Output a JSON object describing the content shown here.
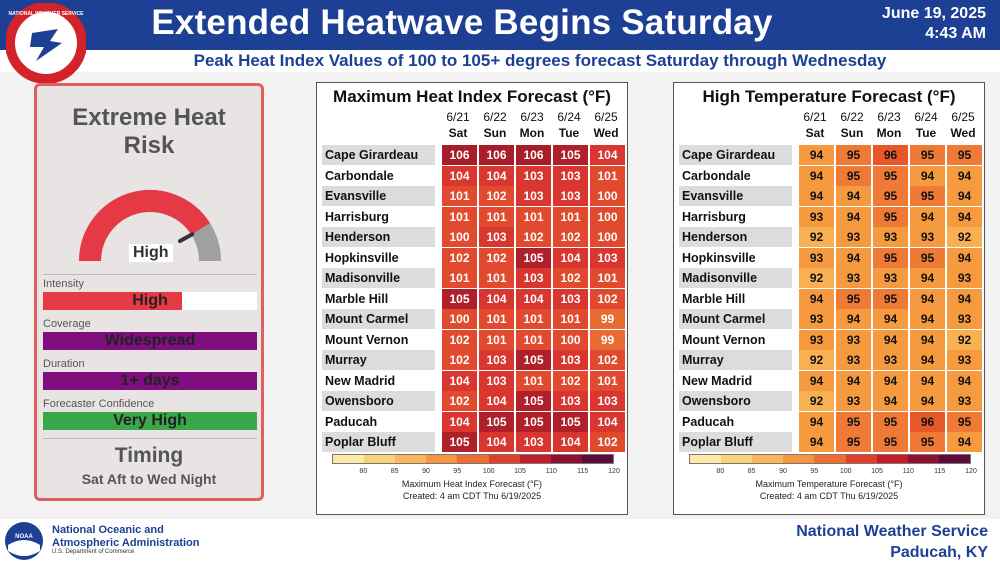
{
  "header": {
    "title": "Extended Heatwave Begins Saturday",
    "date": "June 19, 2025",
    "time": "4:43 AM",
    "subtitle": "Peak Heat Index Values of 100 to 105+ degrees forecast Saturday through Wednesday",
    "logo_text": "NATIONAL WEATHER SERVICE"
  },
  "risk": {
    "title_line1": "Extreme Heat",
    "title_line2": "Risk",
    "gauge_label": "High",
    "gauge_level": 0.82,
    "intensity_label": "Intensity",
    "intensity_value": "High",
    "intensity_fill": 0.65,
    "coverage_label": "Coverage",
    "coverage_value": "Widespread",
    "duration_label": "Duration",
    "duration_value": "1+ days",
    "confidence_label": "Forecaster Confidence",
    "confidence_value": "Very High",
    "timing_title": "Timing",
    "timing_text": "Sat Aft to Wed Night",
    "colors": {
      "high": "#e53a46",
      "purple": "#7f0f7f",
      "green": "#3aa74a"
    }
  },
  "days": [
    {
      "date": "6/21",
      "dow": "Sat"
    },
    {
      "date": "6/22",
      "dow": "Sun"
    },
    {
      "date": "6/23",
      "dow": "Mon"
    },
    {
      "date": "6/24",
      "dow": "Tue"
    },
    {
      "date": "6/25",
      "dow": "Wed"
    }
  ],
  "cities": [
    "Cape Girardeau",
    "Carbondale",
    "Evansville",
    "Harrisburg",
    "Henderson",
    "Hopkinsville",
    "Madisonville",
    "Marble Hill",
    "Mount Carmel",
    "Mount Vernon",
    "Murray",
    "New Madrid",
    "Owensboro",
    "Paducah",
    "Poplar Bluff"
  ],
  "heat_index": {
    "title": "Maximum Heat Index Forecast (°F)",
    "legend_caption": "Maximum Heat Index Forecast (°F)",
    "created": "Created: 4 am CDT Thu 6/19/2025",
    "values": [
      [
        106,
        106,
        106,
        105,
        104
      ],
      [
        104,
        104,
        103,
        103,
        101
      ],
      [
        101,
        102,
        103,
        103,
        100
      ],
      [
        101,
        101,
        101,
        101,
        100
      ],
      [
        100,
        103,
        102,
        102,
        100
      ],
      [
        102,
        102,
        105,
        104,
        103
      ],
      [
        101,
        101,
        103,
        102,
        101
      ],
      [
        105,
        104,
        104,
        103,
        102
      ],
      [
        100,
        101,
        101,
        101,
        99
      ],
      [
        102,
        101,
        101,
        100,
        99
      ],
      [
        102,
        103,
        105,
        103,
        102
      ],
      [
        104,
        103,
        101,
        102,
        101
      ],
      [
        102,
        104,
        105,
        103,
        103
      ],
      [
        104,
        105,
        105,
        105,
        104
      ],
      [
        105,
        104,
        103,
        104,
        102
      ]
    ]
  },
  "high_temp": {
    "title": "High Temperature Forecast (°F)",
    "legend_caption": "Maximum Temperature Forecast (°F)",
    "created": "Created: 4 am CDT Thu 6/19/2025",
    "values": [
      [
        94,
        95,
        96,
        95,
        95
      ],
      [
        94,
        95,
        95,
        94,
        94
      ],
      [
        94,
        94,
        95,
        95,
        94
      ],
      [
        93,
        94,
        95,
        94,
        94
      ],
      [
        92,
        93,
        93,
        93,
        92
      ],
      [
        93,
        94,
        95,
        95,
        94
      ],
      [
        92,
        93,
        93,
        94,
        93
      ],
      [
        94,
        95,
        95,
        94,
        94
      ],
      [
        93,
        94,
        94,
        94,
        93
      ],
      [
        93,
        93,
        94,
        94,
        92
      ],
      [
        92,
        93,
        93,
        94,
        93
      ],
      [
        94,
        94,
        94,
        94,
        94
      ],
      [
        92,
        93,
        94,
        94,
        93
      ],
      [
        94,
        95,
        95,
        96,
        95
      ],
      [
        94,
        95,
        95,
        95,
        94
      ]
    ]
  },
  "legend_ticks": [
    "80",
    "85",
    "90",
    "95",
    "100",
    "105",
    "110",
    "115",
    "120"
  ],
  "legend_colors": [
    "#fde9a8",
    "#fbd27a",
    "#f9b65a",
    "#f5953f",
    "#ee6d33",
    "#e0402a",
    "#c21e2a",
    "#8e1030",
    "#5c0a3a"
  ],
  "footer": {
    "noaa_line1": "National Oceanic and",
    "noaa_line2": "Atmospheric Administration",
    "noaa_sub": "U.S. Department of Commerce",
    "noaa_badge": "NOAA",
    "nws_line1": "National Weather Service",
    "nws_line2": "Paducah, KY"
  }
}
